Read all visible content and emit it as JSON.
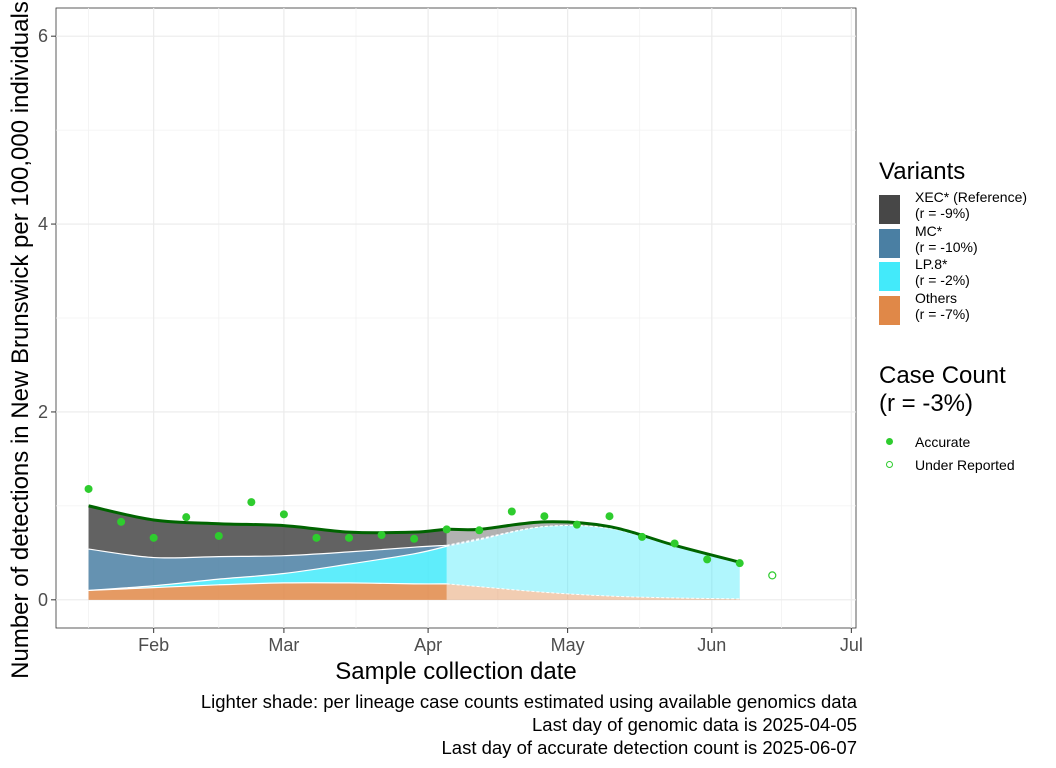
{
  "chart_data": {
    "type": "area",
    "xlabel": "Sample collection date",
    "ylabel": "Number of detections in New Brunswick per 100,000 individuals",
    "x_ticks": [
      "Feb",
      "Mar",
      "Apr",
      "May",
      "Jun",
      "Jul"
    ],
    "x_tick_dates": [
      "2025-02-01",
      "2025-03-01",
      "2025-04-01",
      "2025-05-01",
      "2025-06-01",
      "2025-07-01"
    ],
    "y_ticks": [
      "0",
      "2",
      "4",
      "6"
    ],
    "ylim": [
      -0.3,
      6.3
    ],
    "xlim": [
      "2025-01-11",
      "2025-07-02"
    ],
    "grid": true,
    "legend_position": "right",
    "genomic_cutoff": "2025-04-05",
    "dates": [
      "2025-01-18",
      "2025-02-01",
      "2025-02-15",
      "2025-03-01",
      "2025-03-15",
      "2025-03-29",
      "2025-04-05",
      "2025-04-12",
      "2025-04-26",
      "2025-05-10",
      "2025-05-24",
      "2025-06-07"
    ],
    "stacks": {
      "Others": [
        0.1,
        0.13,
        0.16,
        0.18,
        0.18,
        0.17,
        0.17,
        0.14,
        0.08,
        0.04,
        0.02,
        0.01
      ],
      "LP.8*": [
        0.0,
        0.02,
        0.06,
        0.1,
        0.2,
        0.32,
        0.4,
        0.5,
        0.7,
        0.72,
        0.55,
        0.38
      ],
      "MC*": [
        0.44,
        0.3,
        0.24,
        0.19,
        0.13,
        0.07,
        0.01,
        0.01,
        0.0,
        0.0,
        0.0,
        0.0
      ],
      "XEC* (Reference)": [
        0.46,
        0.4,
        0.35,
        0.32,
        0.21,
        0.16,
        0.17,
        0.1,
        0.05,
        0.02,
        0.01,
        0.01
      ]
    },
    "total_curve": [
      1.0,
      0.85,
      0.81,
      0.79,
      0.72,
      0.72,
      0.75,
      0.75,
      0.83,
      0.78,
      0.58,
      0.4
    ],
    "accurate_points": {
      "dates": [
        "2025-01-18",
        "2025-01-25",
        "2025-02-01",
        "2025-02-08",
        "2025-02-15",
        "2025-02-22",
        "2025-03-01",
        "2025-03-08",
        "2025-03-15",
        "2025-03-22",
        "2025-03-29",
        "2025-04-05",
        "2025-04-12",
        "2025-04-19",
        "2025-04-26",
        "2025-05-03",
        "2025-05-10",
        "2025-05-17",
        "2025-05-24",
        "2025-05-31",
        "2025-06-07"
      ],
      "values": [
        1.18,
        0.83,
        0.66,
        0.88,
        0.68,
        1.04,
        0.91,
        0.66,
        0.66,
        0.69,
        0.65,
        0.75,
        0.74,
        0.94,
        0.89,
        0.8,
        0.89,
        0.67,
        0.6,
        0.43,
        0.39
      ]
    },
    "under_reported_points": {
      "dates": [
        "2025-06-14"
      ],
      "values": [
        0.26
      ]
    }
  },
  "legend": {
    "variants_title": "Variants",
    "items": [
      {
        "name": "XEC* (Reference)",
        "sub": "(r = -9%)",
        "color": "#474747"
      },
      {
        "name": "MC*",
        "sub": "(r = -10%)",
        "color": "#4a7fa3"
      },
      {
        "name": "LP.8*",
        "sub": "(r = -2%)",
        "color": "#43eafa"
      },
      {
        "name": "Others",
        "sub": "(r = -7%)",
        "color": "#e08848"
      }
    ],
    "case_title_line1": "Case Count",
    "case_title_line2": "(r = -3%)",
    "accurate_label": "Accurate",
    "under_label": "Under Reported",
    "point_color": "#2ecc2e",
    "curve_color": "#006400"
  },
  "caption": {
    "line1": "Lighter shade: per lineage case counts estimated using available genomics data",
    "line2": "Last day of genomic data is 2025-04-05",
    "line3": "Last day of accurate detection count is 2025-06-07"
  }
}
